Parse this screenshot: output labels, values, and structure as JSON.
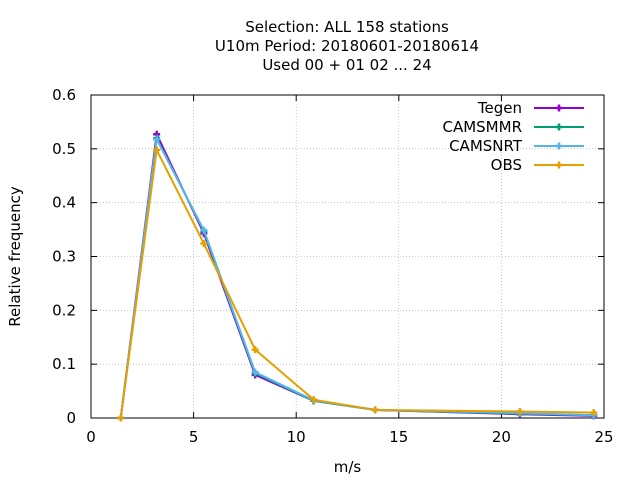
{
  "chart_data": {
    "type": "line",
    "title_lines": [
      "Selection: ALL    158 stations",
      "U10m  Period: 20180601-20180614",
      "Used  00 + 01 02 ... 24"
    ],
    "xlabel": "m/s",
    "ylabel": "Relative frequency",
    "xlim": [
      0,
      25
    ],
    "ylim": [
      0,
      0.6
    ],
    "xticks": [
      0,
      5,
      10,
      15,
      20,
      25
    ],
    "yticks": [
      0,
      0.1,
      0.2,
      0.3,
      0.4,
      0.5,
      0.6
    ],
    "grid": true,
    "legend_position": "top-right",
    "series": [
      {
        "name": "Tegen",
        "color": "#9400d3",
        "marker": "plus",
        "x": [
          1.45,
          3.2,
          5.5,
          8.0,
          10.85,
          13.85,
          20.9,
          24.5
        ],
        "y": [
          0.0,
          0.527,
          0.343,
          0.08,
          0.032,
          0.015,
          0.007,
          0.004
        ]
      },
      {
        "name": "CAMSMMR",
        "color": "#009e73",
        "marker": "plus",
        "x": [
          1.45,
          3.2,
          5.5,
          8.0,
          10.85,
          13.85,
          20.9,
          24.5
        ],
        "y": [
          0.0,
          0.52,
          0.347,
          0.083,
          0.032,
          0.015,
          0.008,
          0.005
        ]
      },
      {
        "name": "CAMSNRT",
        "color": "#56b4e9",
        "marker": "plus",
        "x": [
          1.45,
          3.2,
          5.5,
          8.0,
          10.85,
          13.85,
          20.9,
          24.5
        ],
        "y": [
          0.0,
          0.518,
          0.349,
          0.085,
          0.033,
          0.015,
          0.009,
          0.005
        ]
      },
      {
        "name": "OBS",
        "color": "#e69f00",
        "marker": "plus",
        "x": [
          1.45,
          3.2,
          5.5,
          8.0,
          10.85,
          13.85,
          20.9,
          24.5
        ],
        "y": [
          0.0,
          0.498,
          0.324,
          0.127,
          0.034,
          0.015,
          0.012,
          0.01
        ]
      }
    ]
  }
}
